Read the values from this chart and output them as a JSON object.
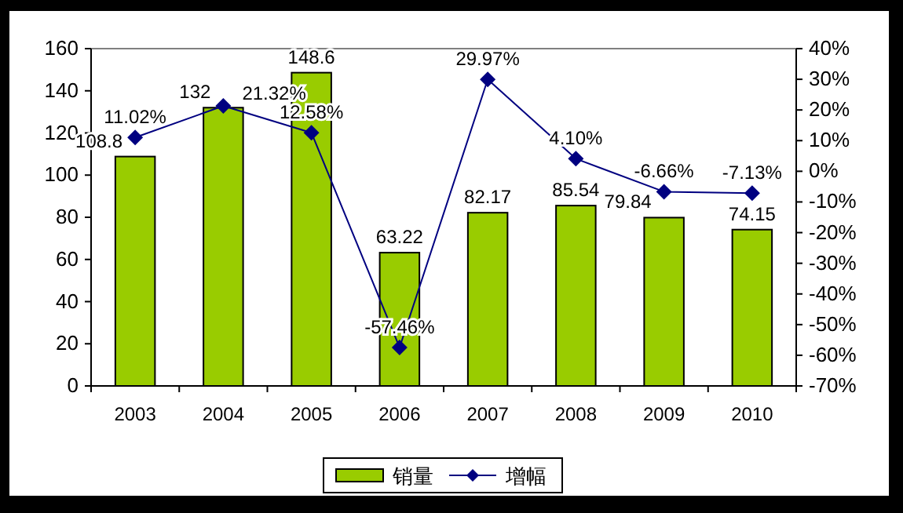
{
  "chart_data": {
    "type": "bar",
    "categories": [
      "2003",
      "2004",
      "2005",
      "2006",
      "2007",
      "2008",
      "2009",
      "2010"
    ],
    "series": [
      {
        "name": "销量",
        "color": "#99cc00",
        "values": [
          108.8,
          132,
          148.6,
          63.22,
          82.17,
          85.54,
          79.84,
          74.15
        ],
        "value_labels": [
          "108.8",
          "132",
          "148.6",
          "63.22",
          "82.17",
          "85.54",
          "79.84",
          "74.15"
        ]
      },
      {
        "name": "增幅",
        "type": "line",
        "axis": "y2",
        "color": "#000080",
        "marker": "diamond",
        "values": [
          11.02,
          21.32,
          12.58,
          -57.46,
          29.97,
          4.1,
          -6.66,
          -7.13
        ],
        "value_labels": [
          "11.02%",
          "21.32%",
          "12.58%",
          "-57.46%",
          "29.97%",
          "4.10%",
          "-6.66%",
          "-7.13%"
        ]
      }
    ],
    "ylim": [
      0,
      160
    ],
    "yticks": [
      0,
      20,
      40,
      60,
      80,
      100,
      120,
      140,
      160
    ],
    "y2lim": [
      -70,
      40
    ],
    "y2ticks": [
      {
        "value": -70,
        "label": "-70%"
      },
      {
        "value": -60,
        "label": "-60%"
      },
      {
        "value": -50,
        "label": "-50%"
      },
      {
        "value": -40,
        "label": "-40%"
      },
      {
        "value": -30,
        "label": "-30%"
      },
      {
        "value": -20,
        "label": "-20%"
      },
      {
        "value": -10,
        "label": "-10%"
      },
      {
        "value": 0,
        "label": "0%"
      },
      {
        "value": 10,
        "label": "10%"
      },
      {
        "value": 20,
        "label": "20%"
      },
      {
        "value": 30,
        "label": "30%"
      },
      {
        "value": 40,
        "label": "40%"
      }
    ],
    "grid": false,
    "legend": "bottom"
  }
}
